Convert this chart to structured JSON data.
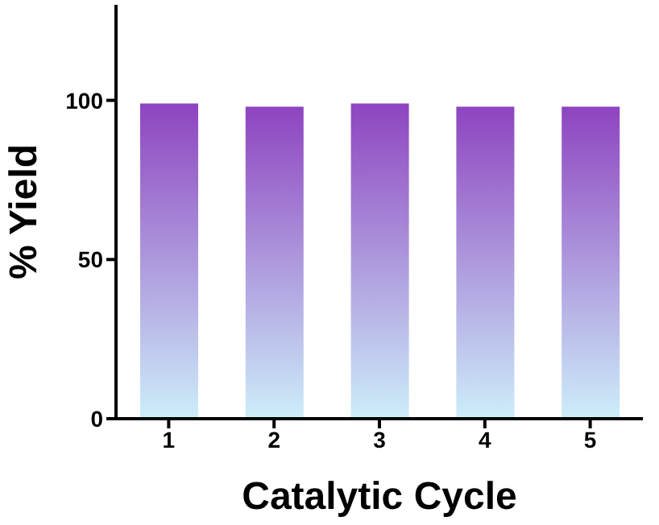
{
  "chart_data": {
    "type": "bar",
    "xlabel": "Catalytic Cycle",
    "ylabel": "% Yield",
    "categories": [
      "1",
      "2",
      "3",
      "4",
      "5"
    ],
    "values": [
      99,
      98,
      99,
      98,
      98
    ],
    "color": "#8e44c0",
    "ylim": [
      0,
      130
    ],
    "yticks": [
      0,
      50,
      100
    ],
    "grid": false
  }
}
